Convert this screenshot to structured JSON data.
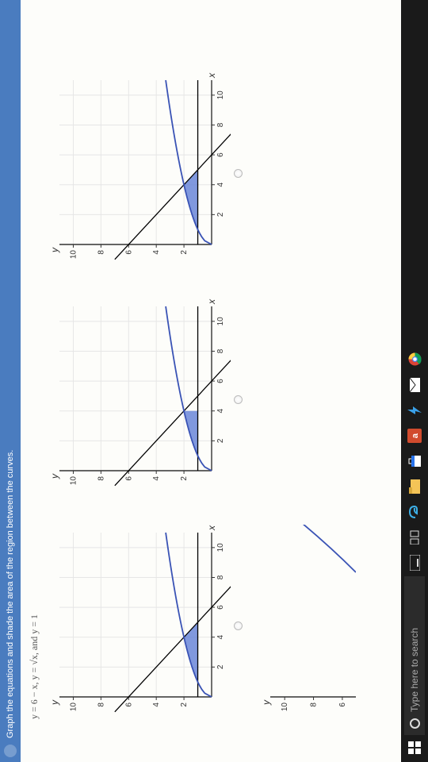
{
  "topbar": {
    "title": "Graph the equations and shade the area of the region between the curves."
  },
  "equations": "y = 6 − x,  y = √x,  and y = 1",
  "taskbar": {
    "search_placeholder": "Type here to search"
  },
  "chart": {
    "type": "line",
    "x_label": "x",
    "y_label": "y",
    "label_fontsize": 12,
    "xlim": [
      0,
      11
    ],
    "ylim": [
      0,
      11
    ],
    "xticks": [
      2,
      4,
      6,
      8,
      10
    ],
    "yticks": [
      2,
      4,
      6,
      8,
      10
    ],
    "grid_color": "#e6e6e6",
    "axis_color": "#333333",
    "background": "#fdfdfa",
    "curves": {
      "line1": {
        "color": "#000000",
        "width": 1.3,
        "from": [
          -1,
          7
        ],
        "to": [
          11,
          -5
        ]
      },
      "sqrt": {
        "color": "#3a53b5",
        "width": 1.8
      },
      "hline": {
        "color": "#000000",
        "width": 1.3,
        "y": 1
      }
    },
    "shade_fill": "#6a86d8",
    "shade_opacity": 0.85
  },
  "panels": [
    {
      "shade": "between_minus_x_and_1_upto_5"
    },
    {
      "shade": "between_sqrt_and_1_only_1to4"
    },
    {
      "shade": "between_min_of_curves_and_1_full"
    }
  ],
  "partial": {
    "y_label": "y",
    "yticks": [
      10,
      8,
      6
    ]
  }
}
